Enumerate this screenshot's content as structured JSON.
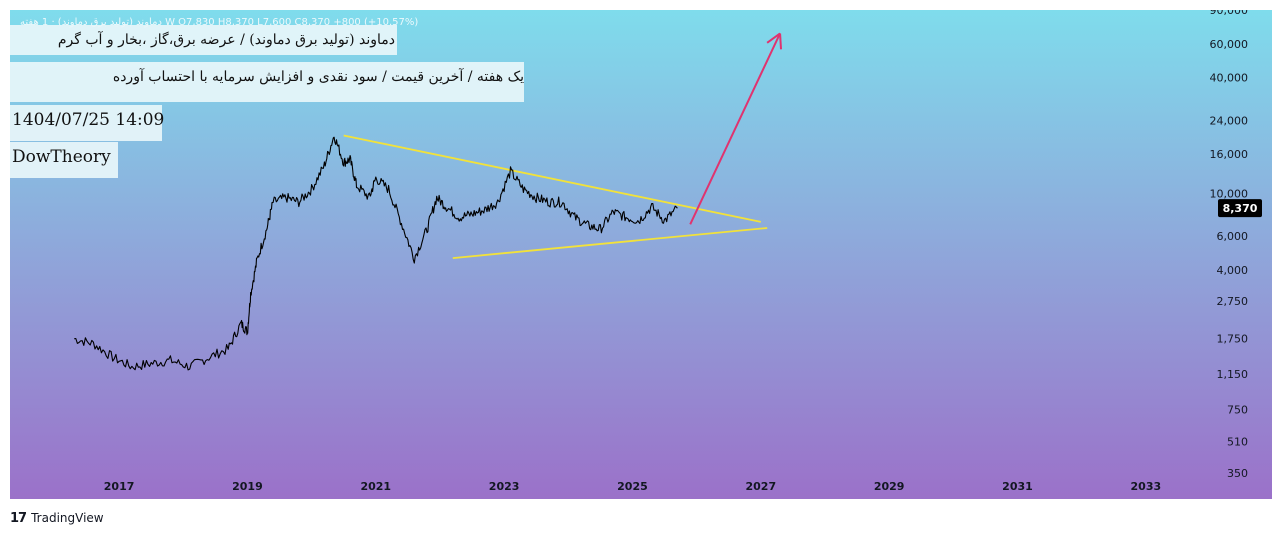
{
  "header": {
    "ticker_line": "دماوند (تولید برق دماوند) · 1 هفته W  O7,830  H8,370  L7,600  C8,370  +800 (+10.57%)",
    "title": "دماوند (تولید برق دماوند) / عرضه برق،گاز ،بخار و آب گرم",
    "subtitle": "یک هفته / آخرین قیمت / سود نقدی و افزایش سرمایه با احتساب آورده",
    "datetime": "1404/07/25 14:09",
    "author": "DowTheory"
  },
  "footer": {
    "logo_text": "17",
    "brand": "TradingView"
  },
  "colors": {
    "bg_top": "#7fdcec",
    "bg_bottom": "#9b71c9",
    "price_line": "#000000",
    "triangle": "#f2e23a",
    "arrow": "#e0336f",
    "last_price_bg": "#000000"
  },
  "chart_data": {
    "type": "line",
    "title": "",
    "xlabel": "",
    "ylabel": "",
    "y_scale": "log",
    "ylim": [
      350,
      90000
    ],
    "xlim": [
      2015.3,
      2034
    ],
    "x_ticks": [
      2017,
      2019,
      2021,
      2023,
      2025,
      2027,
      2029,
      2031,
      2033
    ],
    "x_tick_labels": [
      "2017",
      "2019",
      "2021",
      "2023",
      "2025",
      "2027",
      "2029",
      "2031",
      "2033"
    ],
    "y_ticks": [
      90000,
      60000,
      40000,
      24000,
      16000,
      10000,
      6000,
      4000,
      2750,
      1750,
      1150,
      750,
      510,
      350
    ],
    "y_tick_labels": [
      "90,000",
      "60,000",
      "40,000",
      "24,000",
      "16,000",
      "10,000",
      "6,000",
      "4,000",
      "2,750",
      "1,750",
      "1,150",
      "750",
      "510",
      "350"
    ],
    "last_price": 8370,
    "last_price_label": "8,370",
    "series": [
      {
        "x": [
          2016.3,
          2016.6,
          2016.9,
          2017.2,
          2017.5,
          2017.8,
          2018.1,
          2018.4,
          2018.7,
          2018.9,
          2019.0,
          2019.05,
          2019.15,
          2019.3,
          2019.4,
          2019.6,
          2019.8,
          2020.0,
          2020.2,
          2020.35,
          2020.5,
          2020.6,
          2020.7,
          2020.9,
          2021.0,
          2021.2,
          2021.4,
          2021.6,
          2021.8,
          2021.95,
          2022.1,
          2022.3,
          2022.5,
          2022.7,
          2022.9,
          2023.1,
          2023.3,
          2023.5,
          2023.7,
          2023.9,
          2024.1,
          2024.3,
          2024.5,
          2024.7,
          2024.9,
          2025.1,
          2025.3,
          2025.5,
          2025.7
        ],
        "y": [
          1750,
          1650,
          1400,
          1250,
          1300,
          1350,
          1250,
          1400,
          1550,
          2100,
          1900,
          3000,
          4500,
          6500,
          9000,
          9500,
          9000,
          10500,
          14000,
          20000,
          14500,
          15000,
          11000,
          9500,
          12000,
          10500,
          7000,
          4600,
          6500,
          9500,
          8500,
          7500,
          7800,
          8200,
          9000,
          13000,
          10500,
          9500,
          9000,
          9000,
          7500,
          6800,
          6500,
          8000,
          7500,
          7200,
          8500,
          7200,
          8370
        ]
      }
    ],
    "annotations": {
      "triangle_upper": {
        "x": [
          2020.5,
          2027.0
        ],
        "y": [
          20000,
          7100
        ]
      },
      "triangle_lower": {
        "x": [
          2022.2,
          2027.1
        ],
        "y": [
          4600,
          6600
        ]
      },
      "arrow": {
        "x": [
          2025.9,
          2027.3
        ],
        "y": [
          6900,
          68000
        ]
      }
    }
  }
}
